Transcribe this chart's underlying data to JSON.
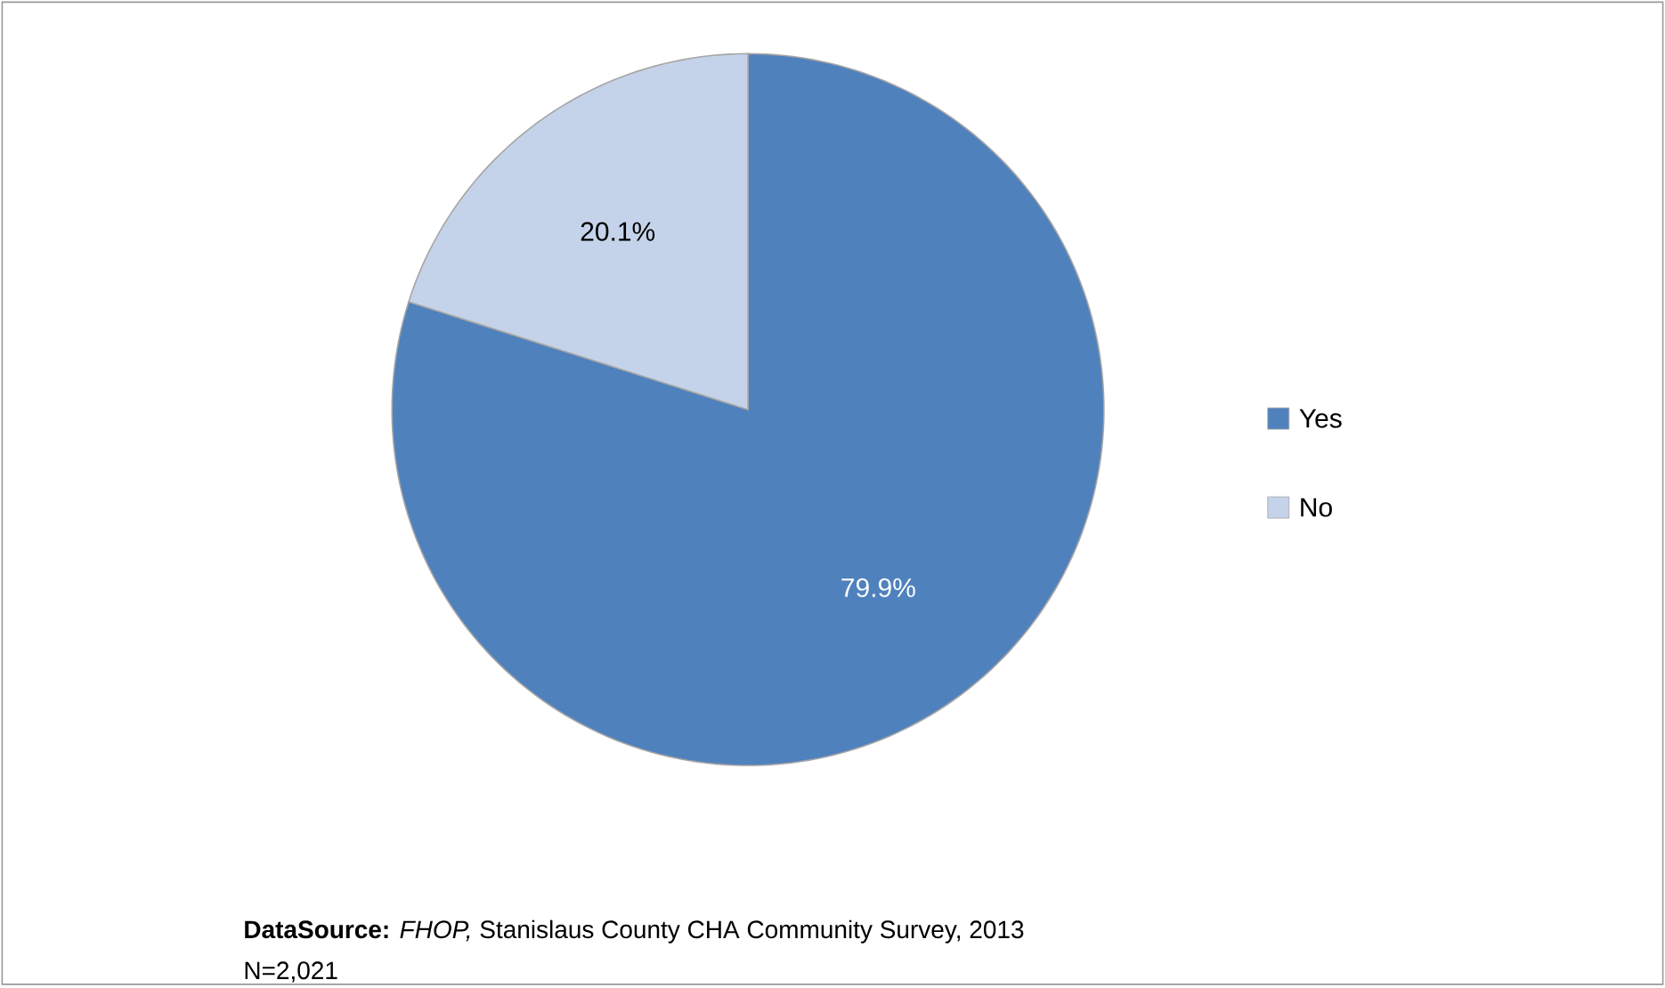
{
  "chart_data": {
    "type": "pie",
    "categories": [
      "Yes",
      "No"
    ],
    "values": [
      79.9,
      20.1
    ],
    "colors": [
      "#4f81bd",
      "#c5d3ea"
    ],
    "value_labels": [
      "79.9%",
      "20.1%"
    ],
    "legend": "right",
    "annotations": [
      "**DataSource:** *FHOP,* Stanislaus County CHA Community Survey, 2013",
      "N=2,021"
    ]
  }
}
